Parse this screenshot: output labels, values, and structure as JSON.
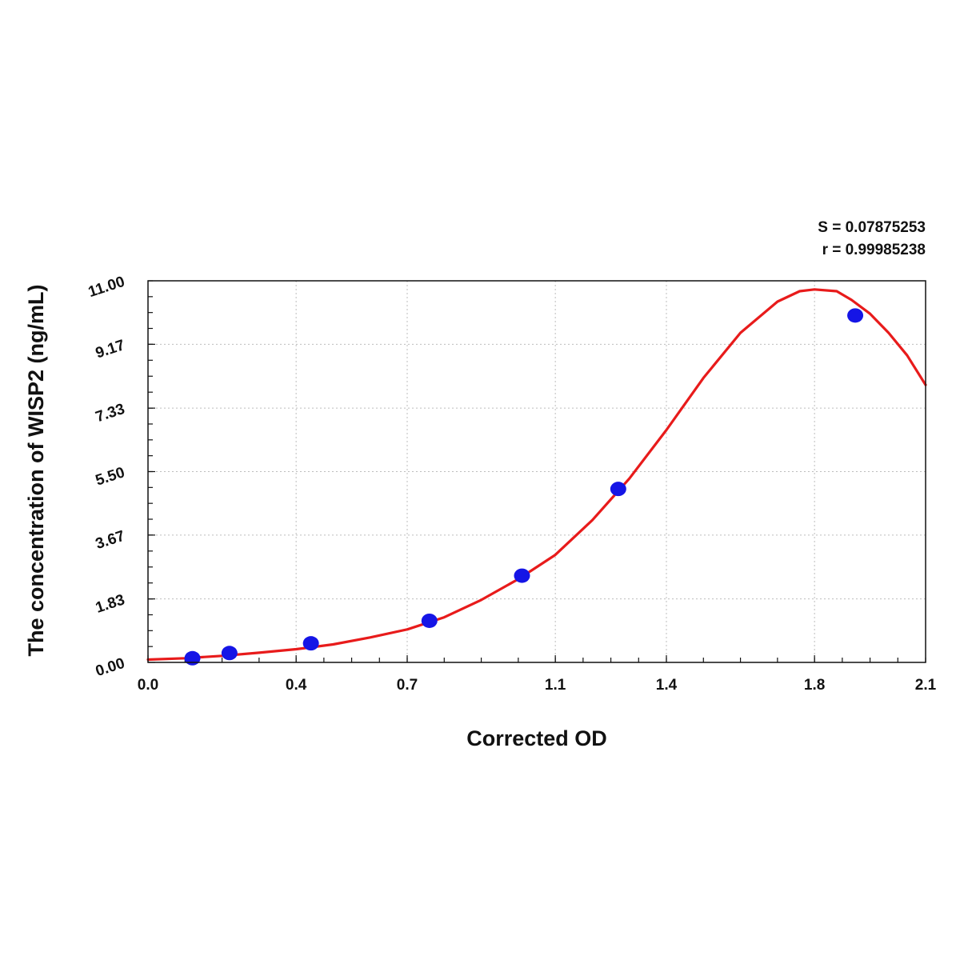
{
  "chart_data": {
    "type": "scatter",
    "xlabel": "Corrected OD",
    "ylabel": "The concentration of WISP2 (ng/mL)",
    "xlim": [
      0.0,
      2.1
    ],
    "ylim": [
      0.0,
      11.0
    ],
    "x_ticks": [
      0.0,
      0.4,
      0.7,
      1.1,
      1.4,
      1.8,
      2.1
    ],
    "x_tick_labels": [
      "0.0",
      "0.4",
      "0.7",
      "1.1",
      "1.4",
      "1.8",
      "2.1"
    ],
    "y_ticks": [
      0.0,
      1.83,
      3.67,
      5.5,
      7.33,
      9.17,
      11.0
    ],
    "y_tick_labels": [
      "0.00",
      "1.83",
      "3.67",
      "5.50",
      "7.33",
      "9.17",
      "11.00"
    ],
    "grid": true,
    "series": [
      {
        "points": [
          {
            "x": 0.12,
            "y": 0.12
          },
          {
            "x": 0.22,
            "y": 0.27
          },
          {
            "x": 0.44,
            "y": 0.55
          },
          {
            "x": 0.76,
            "y": 1.2
          },
          {
            "x": 1.01,
            "y": 2.5
          },
          {
            "x": 1.27,
            "y": 5.0
          },
          {
            "x": 1.91,
            "y": 10.0
          }
        ]
      }
    ],
    "fit_curve": [
      [
        0.0,
        0.08
      ],
      [
        0.1,
        0.12
      ],
      [
        0.2,
        0.19
      ],
      [
        0.3,
        0.28
      ],
      [
        0.4,
        0.38
      ],
      [
        0.5,
        0.52
      ],
      [
        0.6,
        0.72
      ],
      [
        0.7,
        0.95
      ],
      [
        0.8,
        1.3
      ],
      [
        0.9,
        1.8
      ],
      [
        1.0,
        2.4
      ],
      [
        1.1,
        3.1
      ],
      [
        1.2,
        4.1
      ],
      [
        1.3,
        5.3
      ],
      [
        1.4,
        6.7
      ],
      [
        1.5,
        8.2
      ],
      [
        1.6,
        9.5
      ],
      [
        1.7,
        10.4
      ],
      [
        1.76,
        10.7
      ],
      [
        1.8,
        10.75
      ],
      [
        1.86,
        10.7
      ],
      [
        1.9,
        10.45
      ],
      [
        1.95,
        10.05
      ],
      [
        2.0,
        9.5
      ],
      [
        2.05,
        8.85
      ],
      [
        2.1,
        8.0
      ]
    ],
    "point_color": "#1515e6",
    "curve_color": "#e81b1b",
    "annotations": [
      "S = 0.07875253",
      "r = 0.99985238"
    ]
  }
}
